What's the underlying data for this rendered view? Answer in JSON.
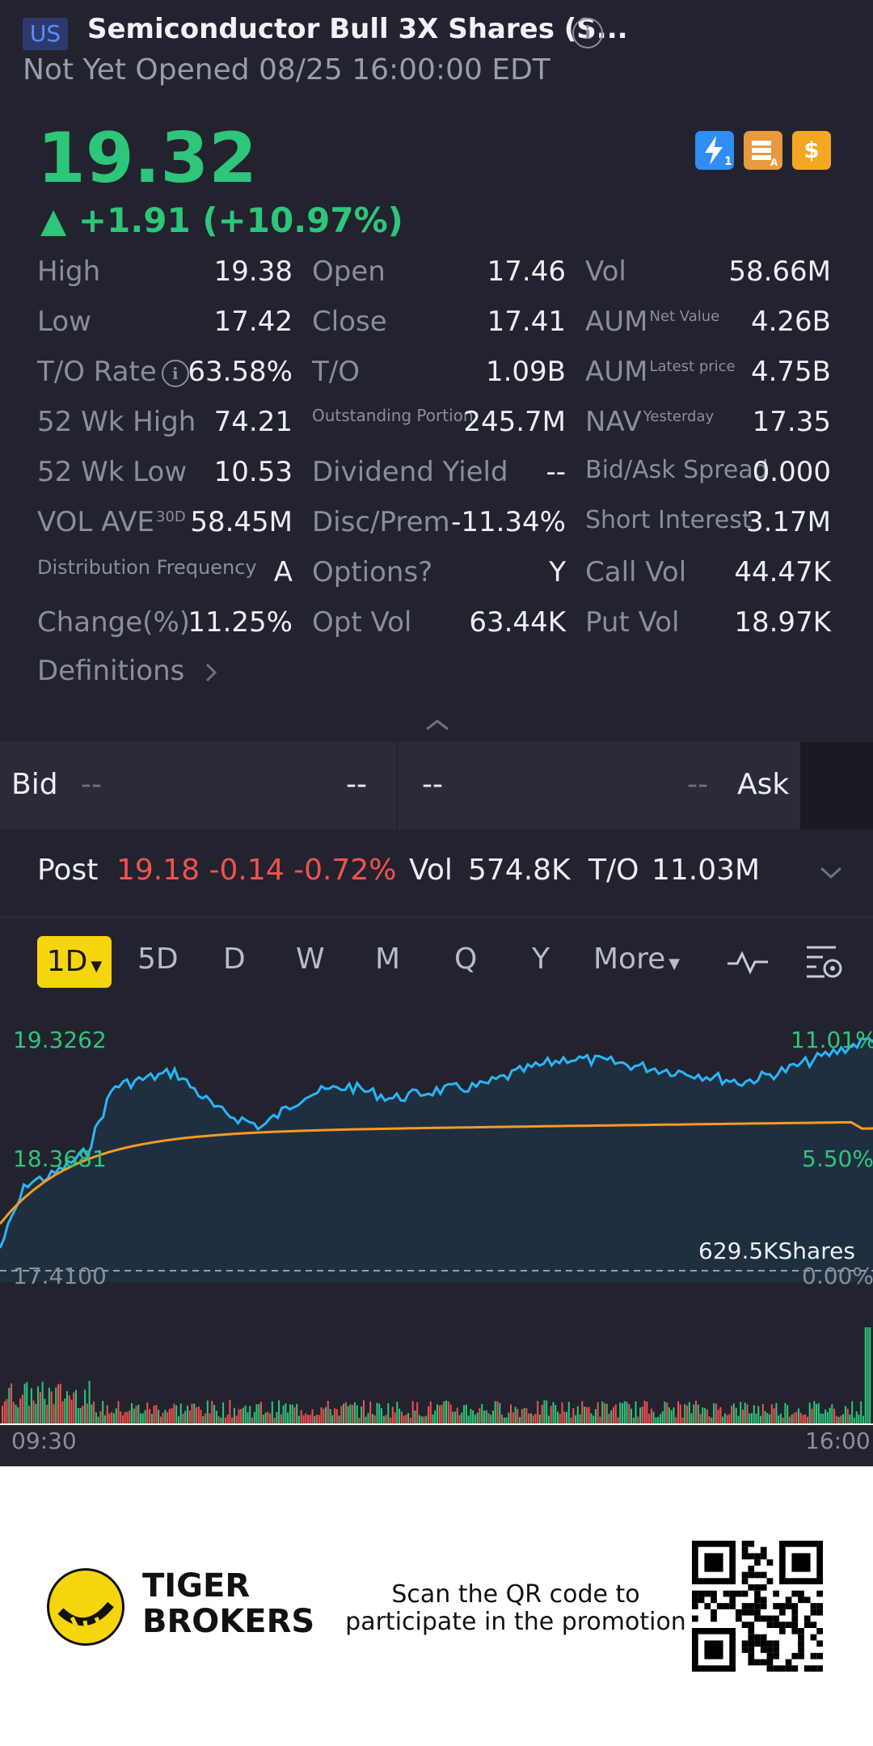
{
  "header": {
    "market_badge": "US",
    "title": "Semiconductor Bull 3X Shares (S...",
    "subtitle": "Not Yet Opened 08/25 16:00:00 EDT"
  },
  "quote": {
    "price": "19.32",
    "change": "▲ +1.91 (+10.97%)"
  },
  "stats": {
    "col1": [
      {
        "label": "High",
        "value": "19.38"
      },
      {
        "label": "Low",
        "value": "17.42"
      },
      {
        "label": "T/O Rate",
        "value": "63.58%"
      },
      {
        "label": "52 Wk High",
        "value": "74.21"
      },
      {
        "label": "52 Wk Low",
        "value": "10.53"
      },
      {
        "label": "VOL AVE",
        "sup": "30D",
        "value": "58.45M"
      },
      {
        "label": "Distribution Frequency",
        "value": "A"
      },
      {
        "label": "Change(%)",
        "value": "11.25%"
      }
    ],
    "col2": [
      {
        "label": "Open",
        "value": "17.46"
      },
      {
        "label": "Close",
        "value": "17.41"
      },
      {
        "label": "T/O",
        "value": "1.09B"
      },
      {
        "label": "Outstanding Portion",
        "value": "245.7M"
      },
      {
        "label": "Dividend Yield",
        "value": "--"
      },
      {
        "label": "Disc/Prem",
        "value": "-11.34%"
      },
      {
        "label": "Options?",
        "value": "Y"
      },
      {
        "label": "Opt Vol",
        "value": "63.44K"
      }
    ],
    "col3": [
      {
        "label": "Vol",
        "value": "58.66M"
      },
      {
        "label": "AUM",
        "sup": "Net Value",
        "value": "4.26B"
      },
      {
        "label": "AUM",
        "sup": "Latest price",
        "value": "4.75B"
      },
      {
        "label": "NAV",
        "sup": "Yesterday",
        "value": "17.35"
      },
      {
        "label": "Bid/Ask Spread",
        "value": "0.000"
      },
      {
        "label": "Short Interest",
        "value": "3.17M"
      },
      {
        "label": "Call Vol",
        "value": "44.47K"
      },
      {
        "label": "Put Vol",
        "value": "18.97K"
      }
    ],
    "definitions": "Definitions"
  },
  "bidask": {
    "bid_label": "Bid",
    "bid_price": "--",
    "bid_size": "--",
    "ask_price": "--",
    "ask_size": "--",
    "ask_label": "Ask"
  },
  "post": {
    "label": "Post",
    "values": "19.18 -0.14 -0.72%",
    "vol_label": "Vol",
    "vol": "574.8K",
    "to_label": "T/O",
    "to": "11.03M"
  },
  "tabs": {
    "active": "1D",
    "items": [
      "5D",
      "D",
      "W",
      "M",
      "Q",
      "Y"
    ],
    "more": "More"
  },
  "chart_data": {
    "type": "line",
    "y_left_top": "19.3262",
    "y_left_mid": "18.3681",
    "y_left_base": "17.4100",
    "y_right_top": "11.01%",
    "y_right_mid": "5.50%",
    "y_right_base": "0.00%",
    "volume_label": "629.5KShares",
    "x_start": "09:30",
    "x_end": "16:00",
    "colors": {
      "price": "#29b6f6",
      "avg": "#f59a23",
      "up": "#2ec67a",
      "down": "#f0524f"
    }
  },
  "footer": {
    "brand_line1": "TIGER",
    "brand_line2": "BROKERS",
    "scan_text": "Scan the QR code to participate in the promotion"
  }
}
